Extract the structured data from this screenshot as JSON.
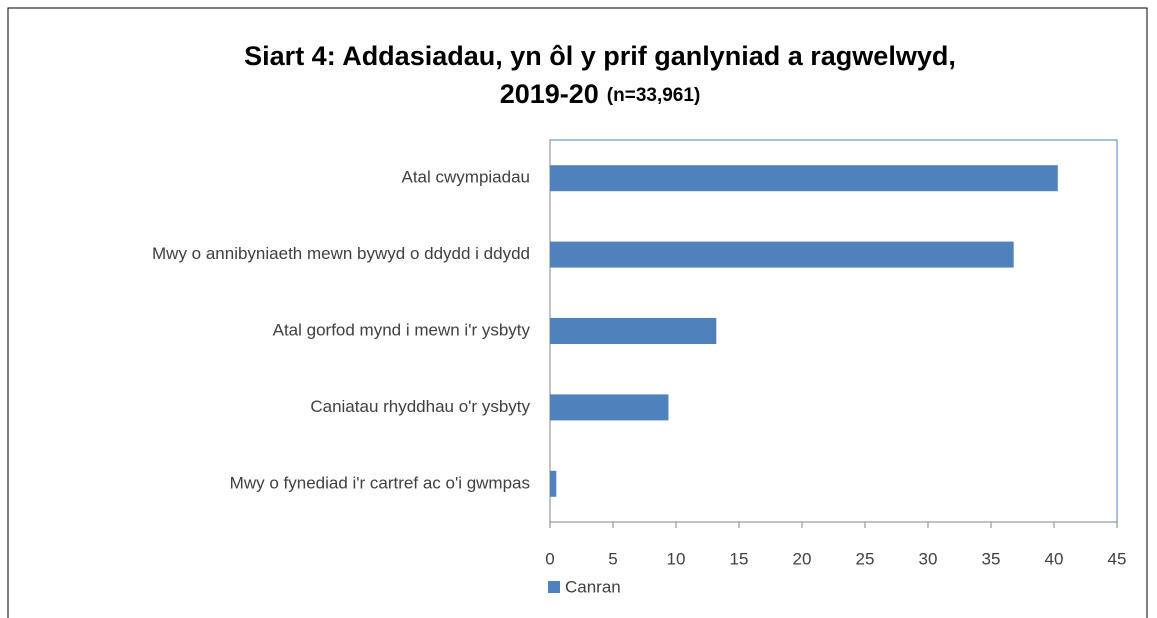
{
  "chart_data": {
    "type": "bar",
    "orientation": "horizontal",
    "title": [
      "Siart 4: Addasiadau, yn ôl y prif ganlyniad a ragwelwyd,",
      "2019-20"
    ],
    "subtitle": "(n=33,961)",
    "categories": [
      "Atal cwympiadau",
      "Mwy o annibyniaeth mewn bywyd o ddydd i ddydd",
      "Atal gorfod mynd i mewn i'r ysbyty",
      "Caniatau rhyddhau o'r ysbyty",
      "Mwy o fynediad i'r cartref ac o'i gwmpas"
    ],
    "series": [
      {
        "name": "Canran",
        "color": "#4f81bd",
        "values": [
          40.3,
          36.8,
          13.2,
          9.4,
          0.5
        ]
      }
    ],
    "xlim": [
      0,
      45
    ],
    "xticks": [
      0,
      5,
      10,
      15,
      20,
      25,
      30,
      35,
      40,
      45
    ],
    "grid": false,
    "legend": "bottom"
  }
}
